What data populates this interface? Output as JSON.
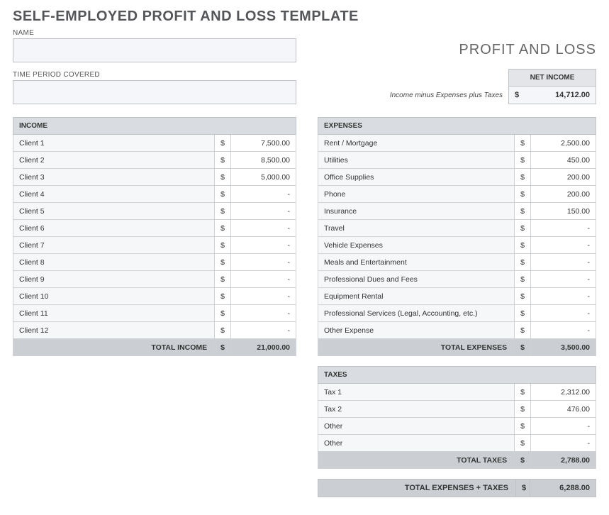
{
  "title": "SELF-EMPLOYED PROFIT AND LOSS TEMPLATE",
  "subtitle": "PROFIT AND LOSS",
  "name_label": "NAME",
  "time_period_label": "TIME PERIOD COVERED",
  "net_income": {
    "header": "NET INCOME",
    "note": "Income minus Expenses plus Taxes",
    "currency": "$",
    "value": "14,712.00"
  },
  "income": {
    "header": "INCOME",
    "currency": "$",
    "rows": [
      {
        "label": "Client 1",
        "value": "7,500.00"
      },
      {
        "label": "Client 2",
        "value": "8,500.00"
      },
      {
        "label": "Client 3",
        "value": "5,000.00"
      },
      {
        "label": "Client 4",
        "value": "-"
      },
      {
        "label": "Client 5",
        "value": "-"
      },
      {
        "label": "Client 6",
        "value": "-"
      },
      {
        "label": "Client 7",
        "value": "-"
      },
      {
        "label": "Client 8",
        "value": "-"
      },
      {
        "label": "Client 9",
        "value": "-"
      },
      {
        "label": "Client 10",
        "value": "-"
      },
      {
        "label": "Client 11",
        "value": "-"
      },
      {
        "label": "Client 12",
        "value": "-"
      }
    ],
    "total_label": "TOTAL INCOME",
    "total_value": "21,000.00"
  },
  "expenses": {
    "header": "EXPENSES",
    "currency": "$",
    "rows": [
      {
        "label": "Rent / Mortgage",
        "value": "2,500.00"
      },
      {
        "label": "Utilities",
        "value": "450.00"
      },
      {
        "label": "Office Supplies",
        "value": "200.00"
      },
      {
        "label": "Phone",
        "value": "200.00"
      },
      {
        "label": "Insurance",
        "value": "150.00"
      },
      {
        "label": "Travel",
        "value": "-"
      },
      {
        "label": "Vehicle Expenses",
        "value": "-"
      },
      {
        "label": "Meals and Entertainment",
        "value": "-"
      },
      {
        "label": "Professional Dues and Fees",
        "value": "-"
      },
      {
        "label": "Equipment Rental",
        "value": "-"
      },
      {
        "label": "Professional Services (Legal, Accounting, etc.)",
        "value": "-"
      },
      {
        "label": "Other Expense",
        "value": "-"
      }
    ],
    "total_label": "TOTAL EXPENSES",
    "total_value": "3,500.00"
  },
  "taxes": {
    "header": "TAXES",
    "currency": "$",
    "rows": [
      {
        "label": "Tax 1",
        "value": "2,312.00"
      },
      {
        "label": "Tax 2",
        "value": "476.00"
      },
      {
        "label": "Other",
        "value": "-"
      },
      {
        "label": "Other",
        "value": "-"
      }
    ],
    "total_label": "TOTAL TAXES",
    "total_value": "2,788.00"
  },
  "grand_total": {
    "label": "TOTAL EXPENSES + TAXES",
    "currency": "$",
    "value": "6,288.00"
  },
  "colors": {
    "header_bg": "#d9dce0",
    "total_bg": "#cbced3",
    "input_bg": "#f4f6f9",
    "row_label_bg": "#f6f7f9",
    "border": "#bfc3c6"
  }
}
